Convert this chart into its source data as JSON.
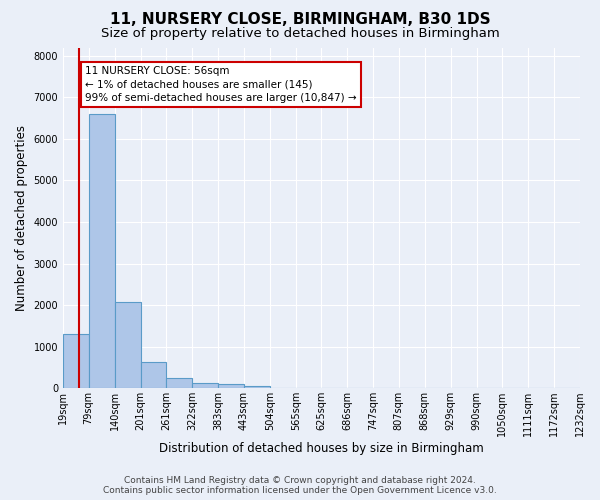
{
  "title": "11, NURSERY CLOSE, BIRMINGHAM, B30 1DS",
  "subtitle": "Size of property relative to detached houses in Birmingham",
  "xlabel": "Distribution of detached houses by size in Birmingham",
  "ylabel": "Number of detached properties",
  "footer_line1": "Contains HM Land Registry data © Crown copyright and database right 2024.",
  "footer_line2": "Contains public sector information licensed under the Open Government Licence v3.0.",
  "annotation_line1": "11 NURSERY CLOSE: 56sqm",
  "annotation_line2": "← 1% of detached houses are smaller (145)",
  "annotation_line3": "99% of semi-detached houses are larger (10,847) →",
  "bar_left_edges": [
    19,
    79,
    140,
    201,
    261,
    322,
    383,
    443,
    504,
    565,
    625,
    686,
    747,
    807,
    868,
    929,
    990,
    1050,
    1111,
    1172
  ],
  "bar_widths": [
    60,
    61,
    61,
    60,
    61,
    61,
    60,
    61,
    61,
    60,
    61,
    61,
    60,
    61,
    61,
    61,
    60,
    61,
    61,
    60
  ],
  "bar_heights": [
    1300,
    6600,
    2080,
    640,
    250,
    130,
    100,
    60,
    0,
    0,
    0,
    0,
    0,
    0,
    0,
    0,
    0,
    0,
    0,
    0
  ],
  "tick_labels": [
    "19sqm",
    "79sqm",
    "140sqm",
    "201sqm",
    "261sqm",
    "322sqm",
    "383sqm",
    "443sqm",
    "504sqm",
    "565sqm",
    "625sqm",
    "686sqm",
    "747sqm",
    "807sqm",
    "868sqm",
    "929sqm",
    "990sqm",
    "1050sqm",
    "1111sqm",
    "1172sqm",
    "1232sqm"
  ],
  "bar_color": "#aec6e8",
  "bar_edge_color": "#5a9bc8",
  "bar_edge_width": 0.8,
  "property_line_x": 56,
  "property_line_color": "#cc0000",
  "ylim": [
    0,
    8200
  ],
  "yticks": [
    0,
    1000,
    2000,
    3000,
    4000,
    5000,
    6000,
    7000,
    8000
  ],
  "bg_color": "#eaeff8",
  "plot_bg_color": "#eaeff8",
  "grid_color": "#ffffff",
  "annotation_box_color": "#ffffff",
  "annotation_box_edge": "#cc0000",
  "title_fontsize": 11,
  "subtitle_fontsize": 9.5,
  "axis_label_fontsize": 8.5,
  "tick_fontsize": 7,
  "footer_fontsize": 6.5
}
